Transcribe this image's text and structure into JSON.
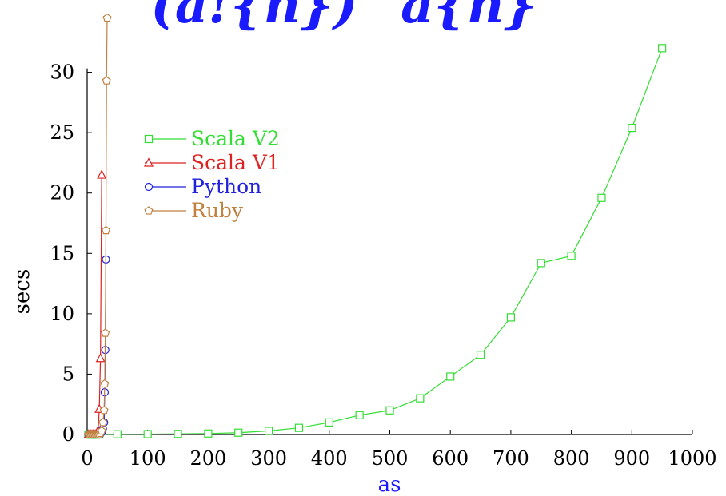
{
  "chart_data": {
    "type": "line",
    "title": "(a!{n})^a{n}",
    "xlabel": "as",
    "ylabel": "secs",
    "xlim": [
      0,
      1000
    ],
    "ylim": [
      0,
      35
    ],
    "xticks": [
      0,
      100,
      200,
      300,
      400,
      500,
      600,
      700,
      800,
      900,
      1000
    ],
    "xtick_labels": [
      "0",
      "100",
      "200",
      "300",
      "400",
      "500",
      "600",
      "700",
      "800",
      "900",
      "1000"
    ],
    "yticks": [
      0,
      5,
      10,
      15,
      20,
      25,
      30
    ],
    "ytick_labels": [
      "0",
      "5",
      "10",
      "15",
      "20",
      "25",
      "30"
    ],
    "grid": false,
    "legend_position": "upper-left",
    "colors": {
      "title": "#1a1aff",
      "xlabel": "#1a1aff",
      "ylabel": "#000000",
      "axis": "#000000"
    },
    "series": [
      {
        "name": "Scala V2",
        "color": "#33dd33",
        "marker": "square",
        "x": [
          2,
          4,
          6,
          8,
          10,
          12,
          14,
          16,
          18,
          20,
          50,
          100,
          150,
          200,
          250,
          300,
          350,
          400,
          450,
          500,
          550,
          600,
          650,
          700,
          750,
          800,
          850,
          900,
          950
        ],
        "y": [
          0,
          0,
          0,
          0,
          0,
          0,
          0,
          0,
          0,
          0.01,
          0.02,
          0.03,
          0.05,
          0.08,
          0.15,
          0.3,
          0.55,
          1.0,
          1.6,
          2.0,
          3.0,
          4.8,
          6.6,
          9.7,
          14.2,
          14.8,
          19.6,
          25.4,
          32.0
        ]
      },
      {
        "name": "Scala V1",
        "color": "#dd2222",
        "marker": "triangle",
        "x": [
          2,
          4,
          6,
          8,
          10,
          12,
          14,
          16,
          18,
          20,
          22,
          24
        ],
        "y": [
          0,
          0,
          0,
          0,
          0,
          0,
          0,
          0.05,
          0.3,
          2.1,
          6.3,
          21.5
        ]
      },
      {
        "name": "Python",
        "color": "#2222dd",
        "marker": "circle",
        "x": [
          2,
          4,
          6,
          8,
          10,
          12,
          14,
          16,
          18,
          20,
          22,
          24,
          26,
          28,
          29,
          30,
          31
        ],
        "y": [
          0,
          0,
          0,
          0,
          0,
          0,
          0,
          0,
          0,
          0,
          0.05,
          0.2,
          0.5,
          1.0,
          3.5,
          7.0,
          14.5
        ]
      },
      {
        "name": "Ruby",
        "color": "#c08040",
        "marker": "pentagon",
        "x": [
          2,
          4,
          6,
          8,
          10,
          12,
          14,
          16,
          18,
          20,
          22,
          24,
          26,
          28,
          29,
          30,
          31,
          32,
          33
        ],
        "y": [
          0,
          0,
          0,
          0,
          0,
          0,
          0,
          0,
          0,
          0,
          0.1,
          0.3,
          1.0,
          2.0,
          4.2,
          8.4,
          16.9,
          29.3,
          34.5
        ]
      }
    ]
  }
}
